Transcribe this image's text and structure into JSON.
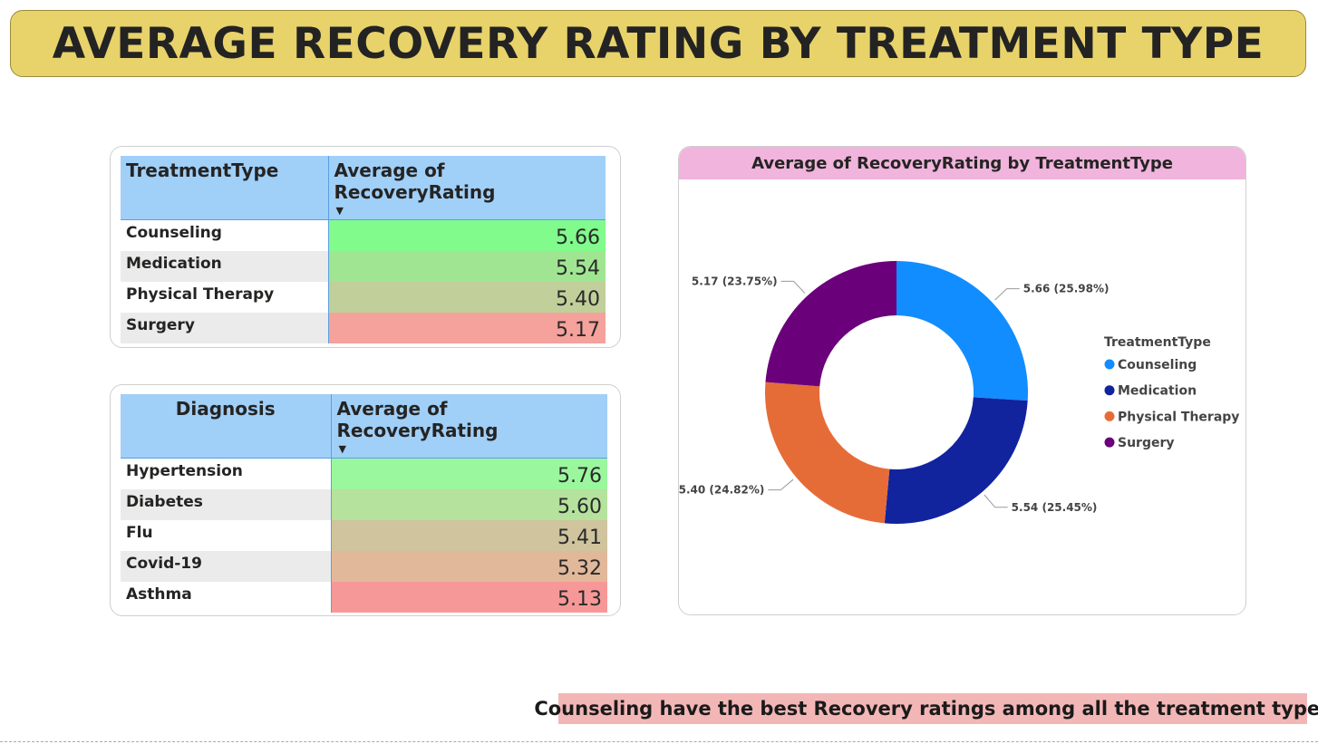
{
  "header": {
    "title": "AVERAGE RECOVERY RATING BY TREATMENT TYPE"
  },
  "treatment_table": {
    "col1_header": "TreatmentType",
    "col2_header": "Average of RecoveryRating",
    "sort_icon": "sort-descending-icon",
    "rows": [
      {
        "name": "Counseling",
        "value": "5.66",
        "color": "#80fb8c"
      },
      {
        "name": "Medication",
        "value": "5.54",
        "color": "#a0e692"
      },
      {
        "name": "Physical Therapy",
        "value": "5.40",
        "color": "#c1cf9a"
      },
      {
        "name": "Surgery",
        "value": "5.17",
        "color": "#f5a19c"
      }
    ]
  },
  "diagnosis_table": {
    "col1_header": "Diagnosis",
    "col2_header": "Average of RecoveryRating",
    "sort_icon": "sort-descending-icon",
    "rows": [
      {
        "name": "Hypertension",
        "value": "5.76",
        "color": "#9bf79e"
      },
      {
        "name": "Diabetes",
        "value": "5.60",
        "color": "#b5e29d"
      },
      {
        "name": "Flu",
        "value": "5.41",
        "color": "#cfc49e"
      },
      {
        "name": "Covid-19",
        "value": "5.32",
        "color": "#e2b89b"
      },
      {
        "name": "Asthma",
        "value": "5.13",
        "color": "#f79898"
      }
    ]
  },
  "chart_data": {
    "type": "pie",
    "title": "Average of RecoveryRating by TreatmentType",
    "legend_title": "TreatmentType",
    "legend_position": "right",
    "donut": true,
    "slices": [
      {
        "name": "Counseling",
        "value": 5.66,
        "percent": 25.98,
        "label": "5.66 (25.98%)",
        "color": "#118dff"
      },
      {
        "name": "Medication",
        "value": 5.54,
        "percent": 25.45,
        "label": "5.54 (25.45%)",
        "color": "#12239e"
      },
      {
        "name": "Physical Therapy",
        "value": 5.4,
        "percent": 24.82,
        "label": "5.40 (24.82%)",
        "color": "#e66c37"
      },
      {
        "name": "Surgery",
        "value": 5.17,
        "percent": 23.75,
        "label": "5.17 (23.75%)",
        "color": "#6b007b"
      }
    ]
  },
  "insight": {
    "text": "Counseling have the best Recovery ratings among all the treatment types"
  }
}
